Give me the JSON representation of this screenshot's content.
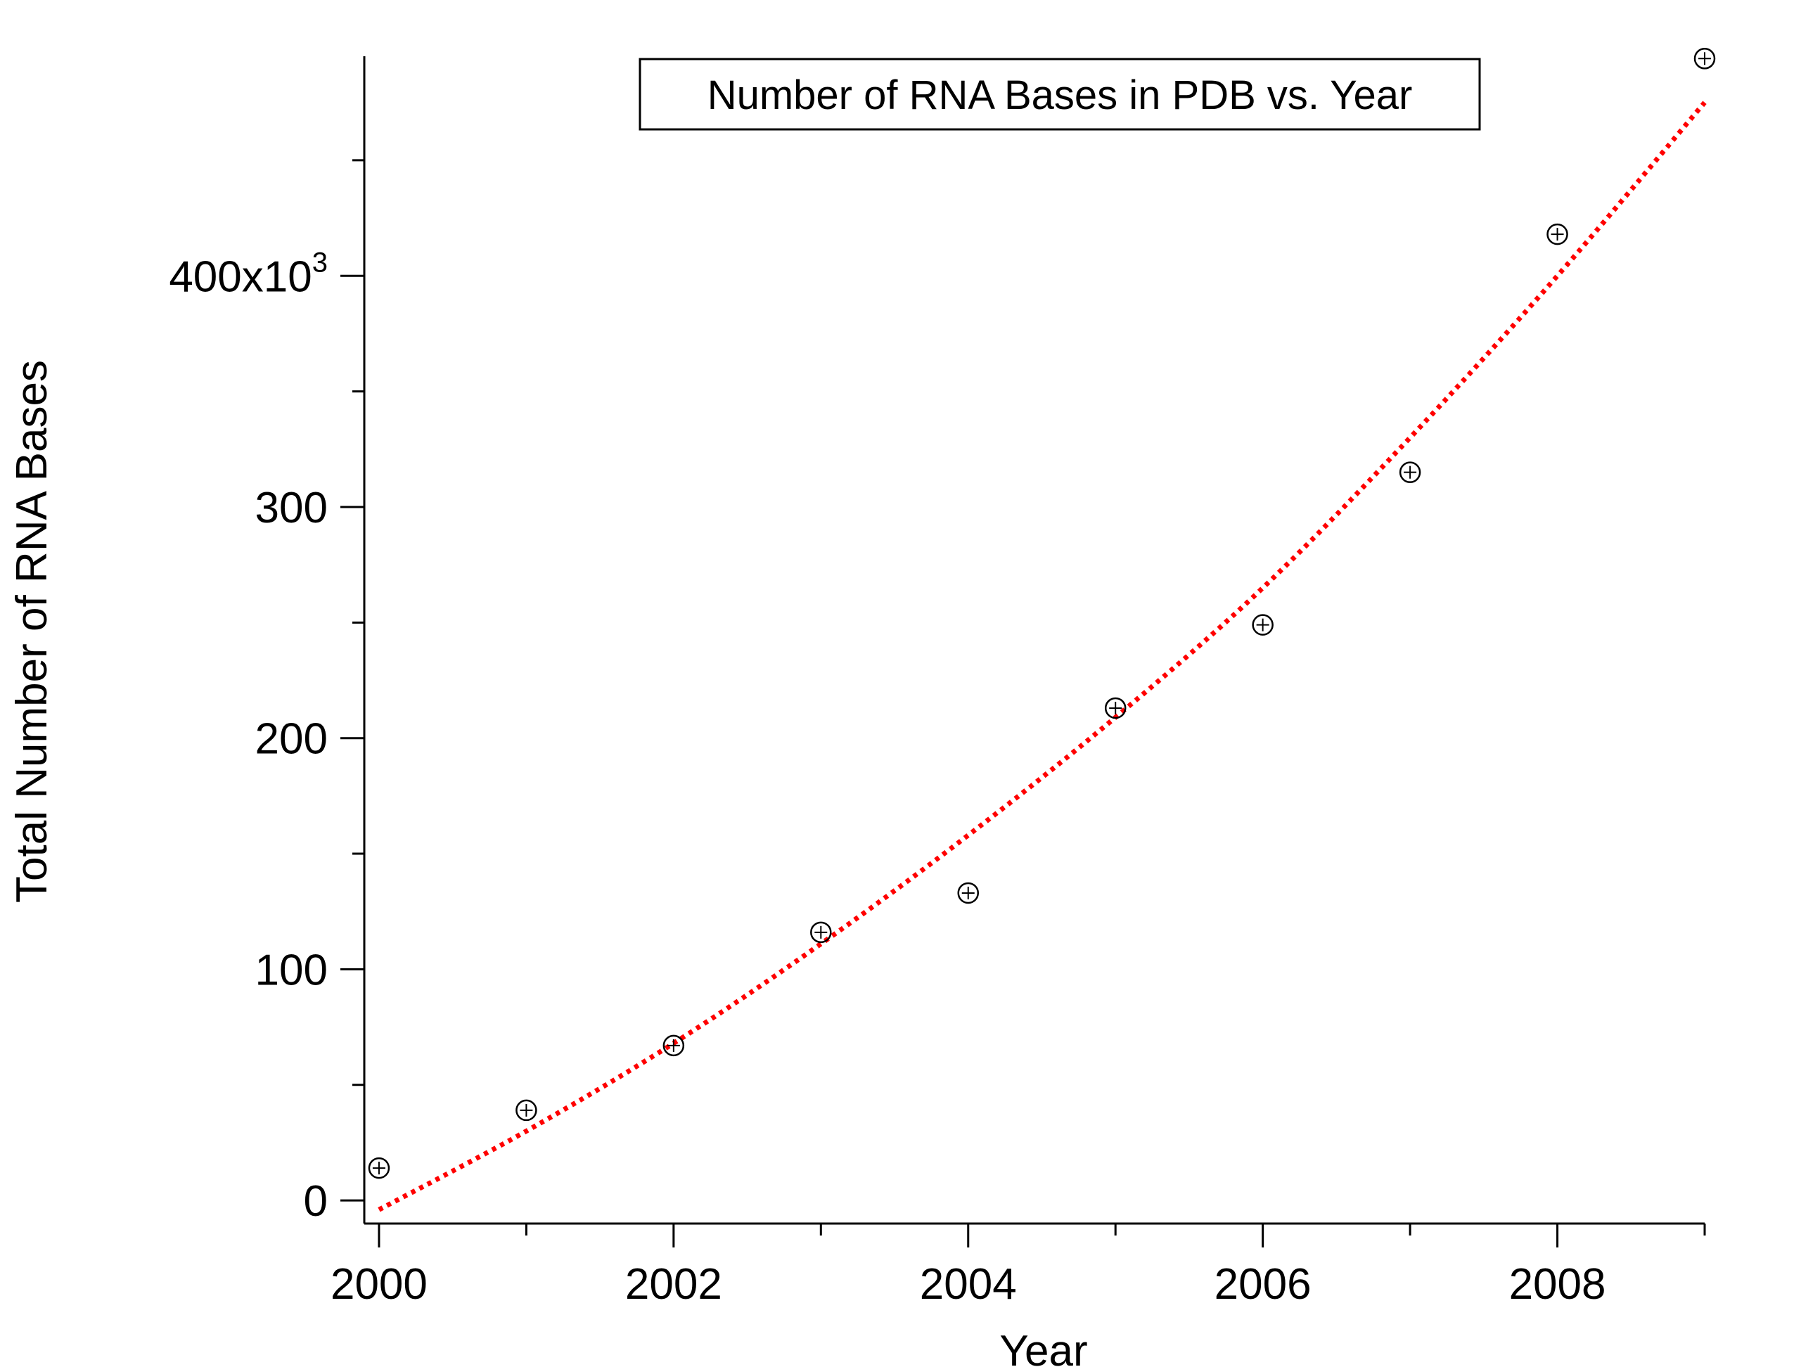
{
  "chart_data": {
    "type": "scatter",
    "title": "Number of RNA Bases in PDB vs. Year",
    "xlabel": "Year",
    "ylabel": "Total Number of RNA Bases",
    "y_multiplier_label": "x10",
    "y_multiplier_exponent": "3",
    "xlim": [
      1999.9,
      2009
    ],
    "ylim": [
      -10,
      495
    ],
    "x_ticks": [
      2000,
      2002,
      2004,
      2006,
      2008
    ],
    "x_tick_labels": [
      "2000",
      "2002",
      "2004",
      "2006",
      "2008"
    ],
    "y_ticks": [
      0,
      100,
      200,
      300,
      400
    ],
    "y_tick_labels": [
      "0",
      "100",
      "200",
      "300",
      "400"
    ],
    "y_minor_ticks": [
      50,
      150,
      250,
      350,
      450
    ],
    "grid": false,
    "legend": "none",
    "series": [
      {
        "kind": "points",
        "marker": "circle-plus",
        "color": "#000000",
        "x": [
          2000,
          2001,
          2002,
          2003,
          2004,
          2005,
          2006,
          2007,
          2008,
          2009
        ],
        "y": [
          14,
          39,
          67,
          116,
          133,
          213,
          249,
          315,
          418,
          494
        ]
      },
      {
        "kind": "fit",
        "style": "dotted",
        "color": "#ff0000",
        "x": [
          2000,
          2001,
          2002,
          2003,
          2004,
          2005,
          2006,
          2007,
          2008,
          2009
        ],
        "y": [
          -4,
          30,
          68,
          111,
          158,
          209,
          265,
          330,
          400,
          475
        ]
      }
    ]
  }
}
